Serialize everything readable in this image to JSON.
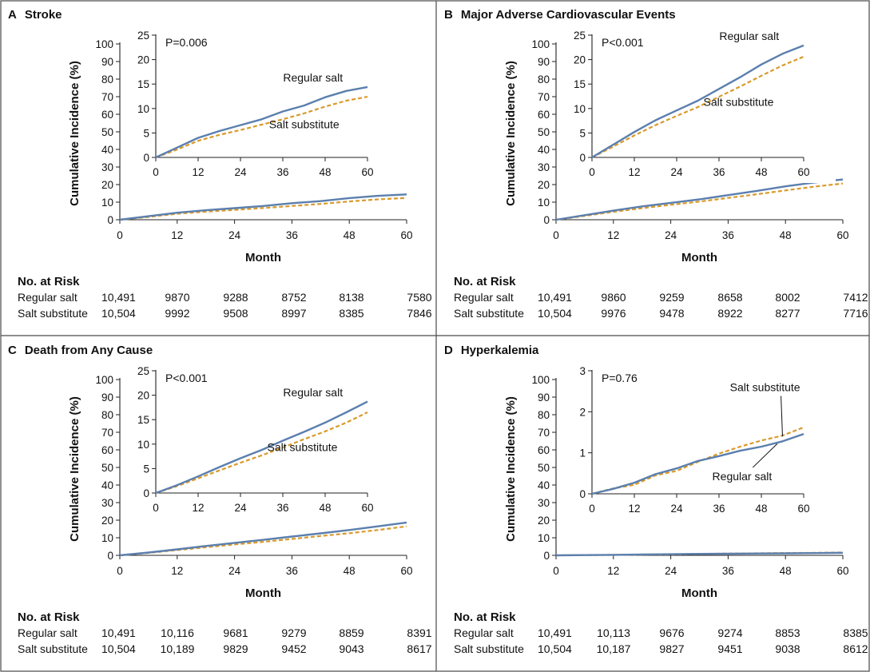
{
  "figure": {
    "x_axis_label": "Month",
    "y_axis_label": "Cumulative Incidence (%)",
    "risk_heading": "No. at Risk",
    "colors": {
      "regular_salt": "#5b7fae",
      "salt_substitute": "#d99a2b",
      "frame": "#4a4a4a"
    }
  },
  "chart_data": [
    {
      "panel": "A",
      "title": "Stroke",
      "type": "line",
      "xlabel": "Month",
      "ylabel": "Cumulative Incidence (%)",
      "xlim": [
        0,
        60
      ],
      "ylim": [
        0,
        100
      ],
      "xticks": [
        0,
        12,
        24,
        36,
        48,
        60
      ],
      "yticks": [
        0,
        10,
        20,
        30,
        40,
        50,
        60,
        70,
        80,
        90,
        100
      ],
      "inset": {
        "xlim": [
          0,
          60
        ],
        "ylim": [
          0,
          25
        ],
        "xticks": [
          0,
          12,
          24,
          36,
          48,
          60
        ],
        "yticks": [
          0,
          5,
          10,
          15,
          20,
          25
        ],
        "p_value": "P=0.006"
      },
      "x": [
        0,
        6,
        12,
        18,
        24,
        30,
        36,
        42,
        48,
        54,
        60
      ],
      "series": [
        {
          "name": "Regular salt",
          "values": [
            0,
            2.0,
            4.0,
            5.4,
            6.6,
            7.8,
            9.4,
            10.6,
            12.3,
            13.6,
            14.4
          ]
        },
        {
          "name": "Salt substitute",
          "values": [
            0,
            1.6,
            3.4,
            4.6,
            5.6,
            6.7,
            7.8,
            9.0,
            10.4,
            11.6,
            12.4
          ]
        }
      ],
      "inset_labels": [
        {
          "series": "Regular salt",
          "at": [
            53,
            15.5
          ]
        },
        {
          "series": "Salt substitute",
          "at": [
            52,
            6.0
          ]
        }
      ],
      "risk_table": {
        "rows": [
          {
            "name": "Regular salt",
            "values": [
              "10,491",
              "9870",
              "9288",
              "8752",
              "8138",
              "7580"
            ]
          },
          {
            "name": "Salt substitute",
            "values": [
              "10,504",
              "9992",
              "9508",
              "8997",
              "8385",
              "7846"
            ]
          }
        ]
      }
    },
    {
      "panel": "B",
      "title": "Major Adverse Cardiovascular Events",
      "type": "line",
      "xlabel": "Month",
      "ylabel": "Cumulative Incidence (%)",
      "xlim": [
        0,
        60
      ],
      "ylim": [
        0,
        100
      ],
      "xticks": [
        0,
        12,
        24,
        36,
        48,
        60
      ],
      "yticks": [
        0,
        10,
        20,
        30,
        40,
        50,
        60,
        70,
        80,
        90,
        100
      ],
      "inset": {
        "xlim": [
          0,
          60
        ],
        "ylim": [
          0,
          25
        ],
        "xticks": [
          0,
          12,
          24,
          36,
          48,
          60
        ],
        "yticks": [
          0,
          5,
          10,
          15,
          20,
          25
        ],
        "p_value": "P<0.001"
      },
      "x": [
        0,
        6,
        12,
        18,
        24,
        30,
        36,
        42,
        48,
        54,
        60
      ],
      "series": [
        {
          "name": "Regular salt",
          "values": [
            0,
            2.6,
            5.2,
            7.6,
            9.6,
            11.6,
            14.0,
            16.4,
            19.0,
            21.2,
            22.9
          ]
        },
        {
          "name": "Salt substitute",
          "values": [
            0,
            2.2,
            4.5,
            6.6,
            8.5,
            10.3,
            12.4,
            14.5,
            16.7,
            18.8,
            20.6
          ]
        }
      ],
      "inset_labels": [
        {
          "series": "Regular salt",
          "at": [
            53,
            24.0
          ]
        },
        {
          "series": "Salt substitute",
          "at": [
            51.5,
            10.5
          ]
        }
      ],
      "risk_table": {
        "rows": [
          {
            "name": "Regular salt",
            "values": [
              "10,491",
              "9860",
              "9259",
              "8658",
              "8002",
              "7412"
            ]
          },
          {
            "name": "Salt substitute",
            "values": [
              "10,504",
              "9976",
              "9478",
              "8922",
              "8277",
              "7716"
            ]
          }
        ]
      }
    },
    {
      "panel": "C",
      "title": "Death from Any Cause",
      "type": "line",
      "xlabel": "Month",
      "ylabel": "Cumulative Incidence (%)",
      "xlim": [
        0,
        60
      ],
      "ylim": [
        0,
        100
      ],
      "xticks": [
        0,
        12,
        24,
        36,
        48,
        60
      ],
      "yticks": [
        0,
        10,
        20,
        30,
        40,
        50,
        60,
        70,
        80,
        90,
        100
      ],
      "inset": {
        "xlim": [
          0,
          60
        ],
        "ylim": [
          0,
          25
        ],
        "xticks": [
          0,
          12,
          24,
          36,
          48,
          60
        ],
        "yticks": [
          0,
          5,
          10,
          15,
          20,
          25
        ],
        "p_value": "P<0.001"
      },
      "x": [
        0,
        6,
        12,
        18,
        24,
        30,
        36,
        42,
        48,
        54,
        60
      ],
      "series": [
        {
          "name": "Regular salt",
          "values": [
            0,
            1.6,
            3.4,
            5.3,
            7.1,
            8.8,
            10.7,
            12.5,
            14.4,
            16.5,
            18.7
          ]
        },
        {
          "name": "Salt substitute",
          "values": [
            0,
            1.4,
            3.0,
            4.6,
            6.2,
            7.7,
            9.3,
            11.0,
            12.6,
            14.4,
            16.5
          ]
        }
      ],
      "inset_labels": [
        {
          "series": "Regular salt",
          "at": [
            53,
            19.8
          ]
        },
        {
          "series": "Salt substitute",
          "at": [
            51.5,
            8.6
          ]
        }
      ],
      "risk_table": {
        "rows": [
          {
            "name": "Regular salt",
            "values": [
              "10,491",
              "10,116",
              "9681",
              "9279",
              "8859",
              "8391"
            ]
          },
          {
            "name": "Salt substitute",
            "values": [
              "10,504",
              "10,189",
              "9829",
              "9452",
              "9043",
              "8617"
            ]
          }
        ]
      }
    },
    {
      "panel": "D",
      "title": "Hyperkalemia",
      "type": "line",
      "xlabel": "Month",
      "ylabel": "Cumulative Incidence (%)",
      "xlim": [
        0,
        60
      ],
      "ylim": [
        0,
        100
      ],
      "xticks": [
        0,
        12,
        24,
        36,
        48,
        60
      ],
      "yticks": [
        0,
        10,
        20,
        30,
        40,
        50,
        60,
        70,
        80,
        90,
        100
      ],
      "inset": {
        "xlim": [
          0,
          60
        ],
        "ylim": [
          0,
          3
        ],
        "xticks": [
          0,
          12,
          24,
          36,
          48,
          60
        ],
        "yticks": [
          0,
          1,
          2,
          3
        ],
        "p_value": "P=0.76"
      },
      "x": [
        0,
        6,
        12,
        18,
        24,
        30,
        36,
        42,
        48,
        54,
        60
      ],
      "series": [
        {
          "name": "Regular salt",
          "values": [
            0,
            0.12,
            0.27,
            0.48,
            0.62,
            0.8,
            0.92,
            1.05,
            1.15,
            1.28,
            1.46
          ]
        },
        {
          "name": "Salt substitute",
          "values": [
            0,
            0.13,
            0.22,
            0.45,
            0.56,
            0.78,
            0.98,
            1.15,
            1.3,
            1.42,
            1.62
          ]
        }
      ],
      "inset_labels": [
        {
          "series": "Salt substitute",
          "at": [
            59,
            2.5
          ],
          "leader_to": [
            54,
            1.4
          ]
        },
        {
          "series": "Regular salt",
          "at": [
            51,
            0.33
          ],
          "leader_to": [
            52.5,
            1.22
          ]
        }
      ],
      "risk_table": {
        "rows": [
          {
            "name": "Regular salt",
            "values": [
              "10,491",
              "10,113",
              "9676",
              "9274",
              "8853",
              "8385"
            ]
          },
          {
            "name": "Salt substitute",
            "values": [
              "10,504",
              "10,187",
              "9827",
              "9451",
              "9038",
              "8612"
            ]
          }
        ]
      }
    }
  ]
}
